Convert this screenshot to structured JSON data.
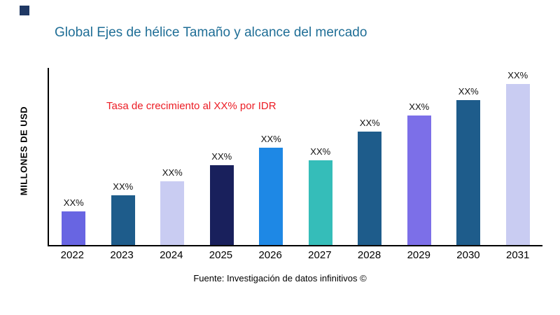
{
  "page": {
    "source": "Fuente: Investigación de datos infinitivos ©"
  },
  "colors": {
    "title": "#1F6E96",
    "annotation": "#EC1C24",
    "axis": "#000000",
    "logo": "#1F3864"
  },
  "chart_data": {
    "type": "bar",
    "title": "Global Ejes de hélice Tamaño y alcance del mercado",
    "ylabel": "MILLONES DE USD",
    "annotation": "Tasa de crecimiento al XX% por IDR",
    "categories": [
      "2022",
      "2023",
      "2024",
      "2025",
      "2026",
      "2027",
      "2028",
      "2029",
      "2030",
      "2031"
    ],
    "values": [
      19,
      28,
      36,
      45,
      55,
      48,
      64,
      73,
      82,
      91
    ],
    "values_note": "relative bar heights in percent of plot height; numeric values not shown in chart",
    "bar_labels": [
      "XX%",
      "XX%",
      "XX%",
      "XX%",
      "XX%",
      "XX%",
      "XX%",
      "XX%",
      "XX%",
      "XX%"
    ],
    "bar_colors": [
      "#6865E2",
      "#1E5C8B",
      "#C9CCF2",
      "#19205C",
      "#1E88E5",
      "#35BDB9",
      "#1E5C8B",
      "#7C6FE8",
      "#1E5C8B",
      "#C9CCF2"
    ],
    "ylim": [
      0,
      100
    ],
    "grid": false,
    "legend": false,
    "source": "Fuente: Investigación de datos infinitivos ©"
  }
}
